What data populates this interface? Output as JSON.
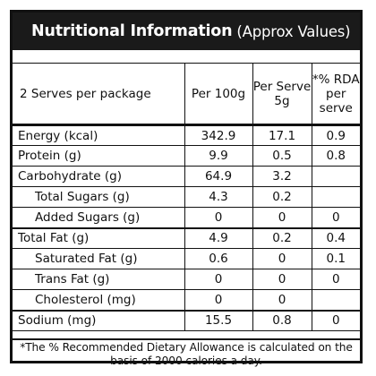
{
  "header": {
    "title": "Nutritional Information",
    "subtitle": "(Approx Values)"
  },
  "columns": {
    "serves": "2 Serves per package",
    "per100g": "Per 100g",
    "perServe_line1": "Per Serve",
    "perServe_line2": "5g",
    "rda_line1": "*% RDA",
    "rda_line2": "per serve"
  },
  "rows": [
    {
      "label": "Energy (kcal)",
      "per100g": "342.9",
      "perServe": "17.1",
      "rda": "0.9"
    },
    {
      "label": "Protein (g)",
      "per100g": "9.9",
      "perServe": "0.5",
      "rda": "0.8"
    },
    {
      "label": "Carbohydrate (g)",
      "per100g": "64.9",
      "perServe": "3.2",
      "rda": ""
    },
    {
      "label": "Total Sugars (g)",
      "per100g": "4.3",
      "perServe": "0.2",
      "rda": ""
    },
    {
      "label": "Added Sugars (g)",
      "per100g": "0",
      "perServe": "0",
      "rda": "0"
    },
    {
      "label": "Total Fat (g)",
      "per100g": "4.9",
      "perServe": "0.2",
      "rda": "0.4"
    },
    {
      "label": "Saturated Fat (g)",
      "per100g": "0.6",
      "perServe": "0",
      "rda": "0.1"
    },
    {
      "label": "Trans Fat (g)",
      "per100g": "0",
      "perServe": "0",
      "rda": "0"
    },
    {
      "label": "Cholesterol (mg)",
      "per100g": "0",
      "perServe": "0",
      "rda": ""
    },
    {
      "label": "Sodium (mg)",
      "per100g": "15.5",
      "perServe": "0.8",
      "rda": "0"
    }
  ],
  "footnote_line1": "*The % Recommended Dietary Allowance is calculated on the",
  "footnote_line2": "basis of 2000 calories a day."
}
